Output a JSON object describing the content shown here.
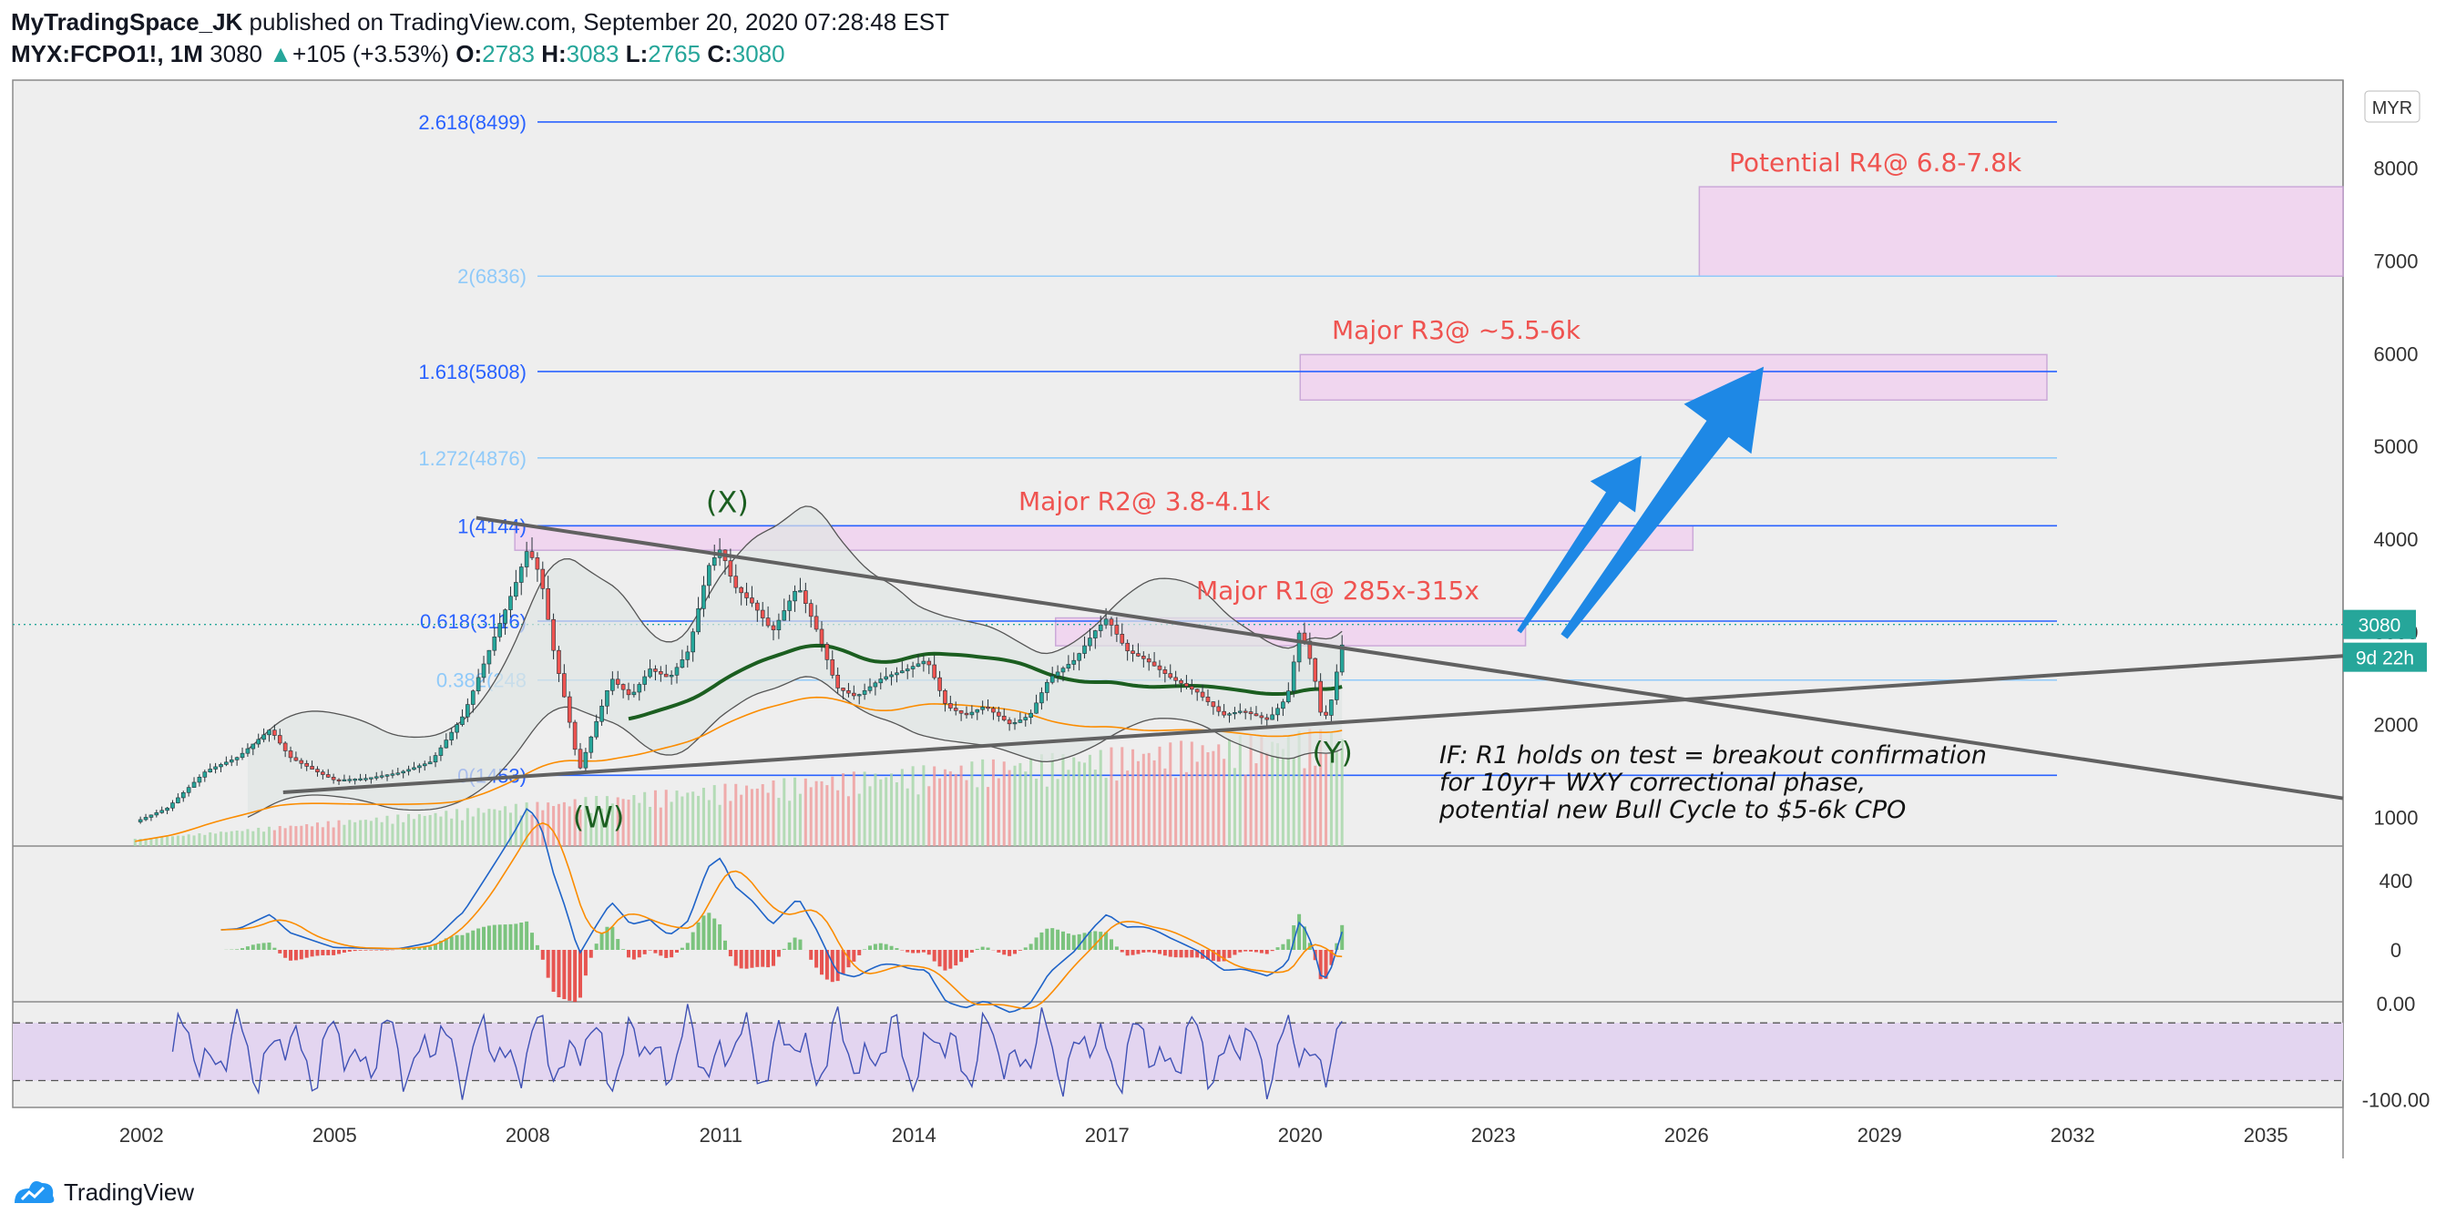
{
  "header": {
    "author": "MyTradingSpace_JK",
    "published": "published on TradingView.com, September 20, 2020 07:28:48 EST",
    "symbol": "MYX:FCPO1!, 1M",
    "last": "3080",
    "change_arrow": "▲",
    "change": "+105 (+3.53%)",
    "open_label": "O:",
    "open": "2783",
    "high_label": "H:",
    "high": "3083",
    "low_label": "L:",
    "low": "2765",
    "close_label": "C:",
    "close": "3080"
  },
  "footer": {
    "brand": "TradingView",
    "logo_icon": "tradingview-logo-icon"
  },
  "colors": {
    "background": "#eeeeee",
    "fib_dark": "#2962ff",
    "fib_light": "#90caf9",
    "zone_fill": "#f1d4f0",
    "zone_stroke": "#c8a2d6",
    "annotation_red": "#ef5350",
    "wave_green": "#1b5e20",
    "arrow_blue": "#1e88e5",
    "price_tag": "#26a69a",
    "rsi_band": "#e3d5f0"
  },
  "chart_data": {
    "type": "line",
    "title": "",
    "currency_badge": "MYR",
    "x_ticks": [
      "2002",
      "2005",
      "2008",
      "2011",
      "2014",
      "2017",
      "2020",
      "2023",
      "2026",
      "2029",
      "2032",
      "2035"
    ],
    "x_range": [
      2000.0,
      2036.2
    ],
    "price_axis": {
      "ticks": [
        1000,
        2000,
        3000,
        4000,
        5000,
        6000,
        7000,
        8000
      ],
      "ylim": [
        690,
        8950
      ]
    },
    "price_tag": "3080",
    "countdown_tag": "9d 22h",
    "fib_levels": [
      {
        "label": "2.618(8499)",
        "value": 8499,
        "style": "dark"
      },
      {
        "label": "2(6836)",
        "value": 6836,
        "style": "light"
      },
      {
        "label": "1.618(5808)",
        "value": 5808,
        "style": "dark"
      },
      {
        "label": "1.272(4876)",
        "value": 4876,
        "style": "light"
      },
      {
        "label": "1(4144)",
        "value": 4144,
        "style": "dark"
      },
      {
        "label": "0.618(3116)",
        "value": 3116,
        "style": "dark"
      },
      {
        "label": "0.382(248",
        "value": 2480,
        "style": "light"
      },
      {
        "label": "0(1453)",
        "value": 1453,
        "style": "dark"
      }
    ],
    "zones": [
      {
        "label": "Potential R4@ 6.8-7.8k",
        "x0": 2026.2,
        "x1": 2036.2,
        "y0": 6836,
        "y1": 7800
      },
      {
        "label": "Major R3@ ~5.5-6k",
        "x0": 2020.0,
        "x1": 2031.6,
        "y0": 5500,
        "y1": 5990
      },
      {
        "label": "Major R2@ 3.8-4.1k",
        "x0": 2007.8,
        "x1": 2026.1,
        "y0": 3880,
        "y1": 4144
      },
      {
        "label": "Major R1@ 285x-315x",
        "x0": 2016.2,
        "x1": 2023.5,
        "y0": 2850,
        "y1": 3150
      }
    ],
    "wave_labels": [
      {
        "label": "(W)",
        "x": 2009.1,
        "y": 890
      },
      {
        "label": "(X)",
        "x": 2011.1,
        "y": 4290
      },
      {
        "label": "(Y)",
        "x": 2020.5,
        "y": 1590
      }
    ],
    "trendlines": [
      {
        "name": "descending-resistance",
        "from": [
          2007.2,
          4230
        ],
        "to": [
          2036.2,
          1205
        ]
      },
      {
        "name": "ascending-support",
        "from": [
          2004.2,
          1270
        ],
        "to": [
          2036.2,
          2740
        ]
      }
    ],
    "arrows": [
      {
        "from": [
          2023.4,
          3000
        ],
        "to": [
          2025.3,
          4900
        ]
      },
      {
        "from": [
          2024.1,
          2950
        ],
        "to": [
          2027.2,
          5860
        ]
      }
    ],
    "note_lines": [
      "IF: R1 holds on test = breakout confirmation",
      "for 10yr+ WXY correctional phase,",
      "potential new Bull Cycle to $5-6k CPO"
    ],
    "price_series": {
      "name": "MYX:FCPO1!",
      "x": [
        2001.9,
        2002.4,
        2003.0,
        2003.5,
        2004.0,
        2004.3,
        2004.7,
        2005.0,
        2005.5,
        2006.0,
        2006.5,
        2007.0,
        2007.4,
        2007.8,
        2008.0,
        2008.2,
        2008.4,
        2008.6,
        2008.8,
        2009.0,
        2009.3,
        2009.6,
        2009.9,
        2010.2,
        2010.5,
        2010.8,
        2011.0,
        2011.2,
        2011.5,
        2011.8,
        2012.2,
        2012.5,
        2012.8,
        2013.1,
        2013.5,
        2013.9,
        2014.2,
        2014.5,
        2014.8,
        2015.1,
        2015.5,
        2015.8,
        2016.1,
        2016.5,
        2016.8,
        2017.0,
        2017.3,
        2017.6,
        2018.0,
        2018.4,
        2018.8,
        2019.1,
        2019.5,
        2019.8,
        2020.0,
        2020.2,
        2020.35,
        2020.5,
        2020.6,
        2020.72
      ],
      "close": [
        950,
        1100,
        1500,
        1650,
        1950,
        1650,
        1500,
        1400,
        1420,
        1480,
        1600,
        2100,
        2800,
        3500,
        3900,
        3600,
        2800,
        2200,
        1500,
        1900,
        2500,
        2300,
        2600,
        2500,
        2800,
        3700,
        3900,
        3500,
        3300,
        3000,
        3500,
        3000,
        2400,
        2300,
        2500,
        2600,
        2700,
        2200,
        2100,
        2200,
        2000,
        2100,
        2500,
        2700,
        3000,
        3150,
        2800,
        2700,
        2500,
        2350,
        2100,
        2150,
        2050,
        2300,
        3050,
        2600,
        2000,
        2300,
        2700,
        3080
      ]
    },
    "macd_axis": {
      "ticks": [
        400,
        0
      ],
      "ylim": [
        -300,
        600
      ]
    },
    "rsi_axis": {
      "ticks": [
        "0.00",
        "-100.00"
      ],
      "ylim": [
        -108,
        2
      ]
    }
  }
}
